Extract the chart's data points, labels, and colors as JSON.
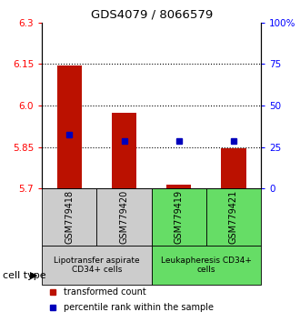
{
  "title": "GDS4079 / 8066579",
  "samples": [
    "GSM779418",
    "GSM779420",
    "GSM779419",
    "GSM779421"
  ],
  "red_values": [
    6.145,
    5.975,
    5.715,
    5.845
  ],
  "blue_values": [
    5.895,
    5.873,
    5.873,
    5.873
  ],
  "y_min": 5.7,
  "y_max": 6.3,
  "y_ticks_left": [
    5.7,
    5.85,
    6.0,
    6.15,
    6.3
  ],
  "y_ticks_right": [
    0,
    25,
    50,
    75,
    100
  ],
  "dotted_lines": [
    5.85,
    6.0,
    6.15
  ],
  "cell_type_groups": [
    {
      "label": "Lipotransfer aspirate\nCD34+ cells",
      "indices": [
        0,
        1
      ],
      "color": "#cccccc"
    },
    {
      "label": "Leukapheresis CD34+\ncells",
      "indices": [
        2,
        3
      ],
      "color": "#66dd66"
    }
  ],
  "cell_type_label": "cell type",
  "legend_red": "transformed count",
  "legend_blue": "percentile rank within the sample",
  "bar_color": "#bb1100",
  "square_color": "#0000bb",
  "bar_width": 0.45
}
